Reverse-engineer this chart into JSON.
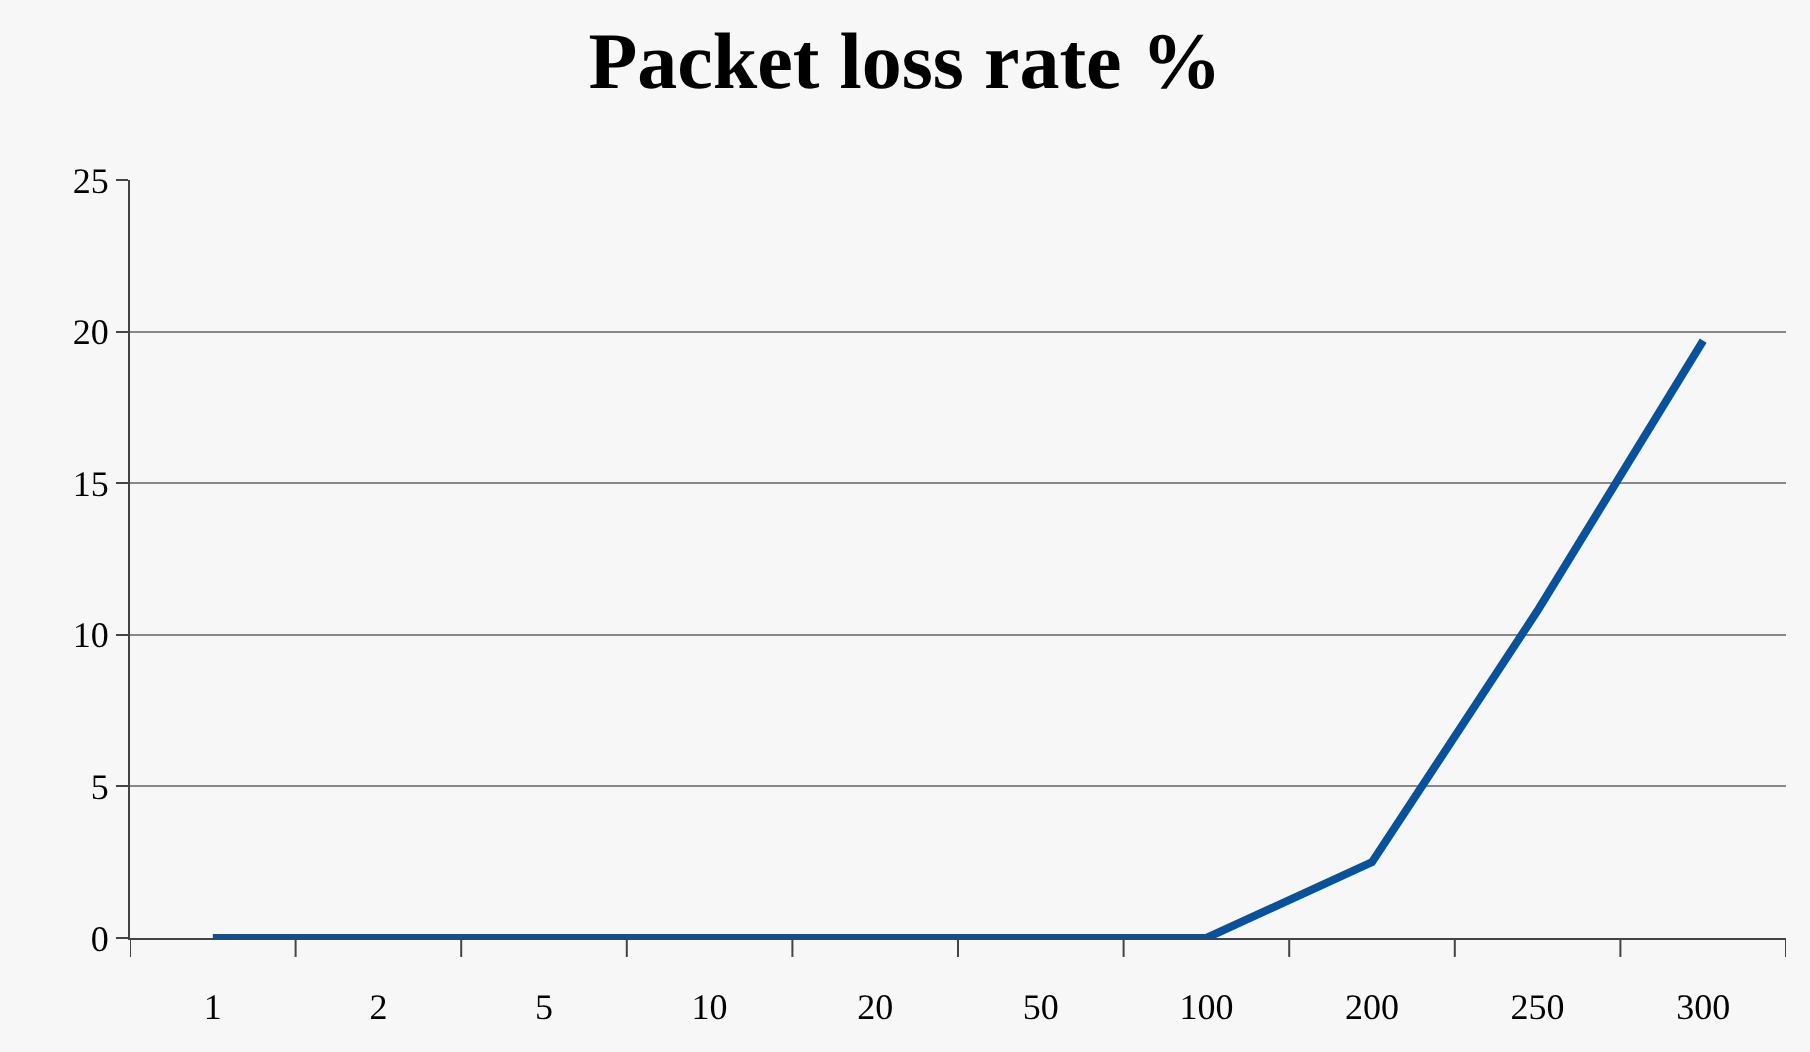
{
  "chart_data": {
    "type": "line",
    "title": "Packet loss rate %",
    "categories": [
      "1",
      "2",
      "5",
      "10",
      "20",
      "50",
      "100",
      "200",
      "250",
      "300"
    ],
    "series": [
      {
        "color": "#08519c",
        "values": [
          0,
          0,
          0,
          0,
          0,
          0,
          0,
          2.5,
          10.8,
          19.7
        ]
      }
    ],
    "ylim": [
      0,
      25
    ],
    "yticks": [
      0,
      5,
      10,
      15,
      20,
      25
    ],
    "grid": "y",
    "legend": false,
    "marker": "none",
    "line_style": "solid"
  }
}
